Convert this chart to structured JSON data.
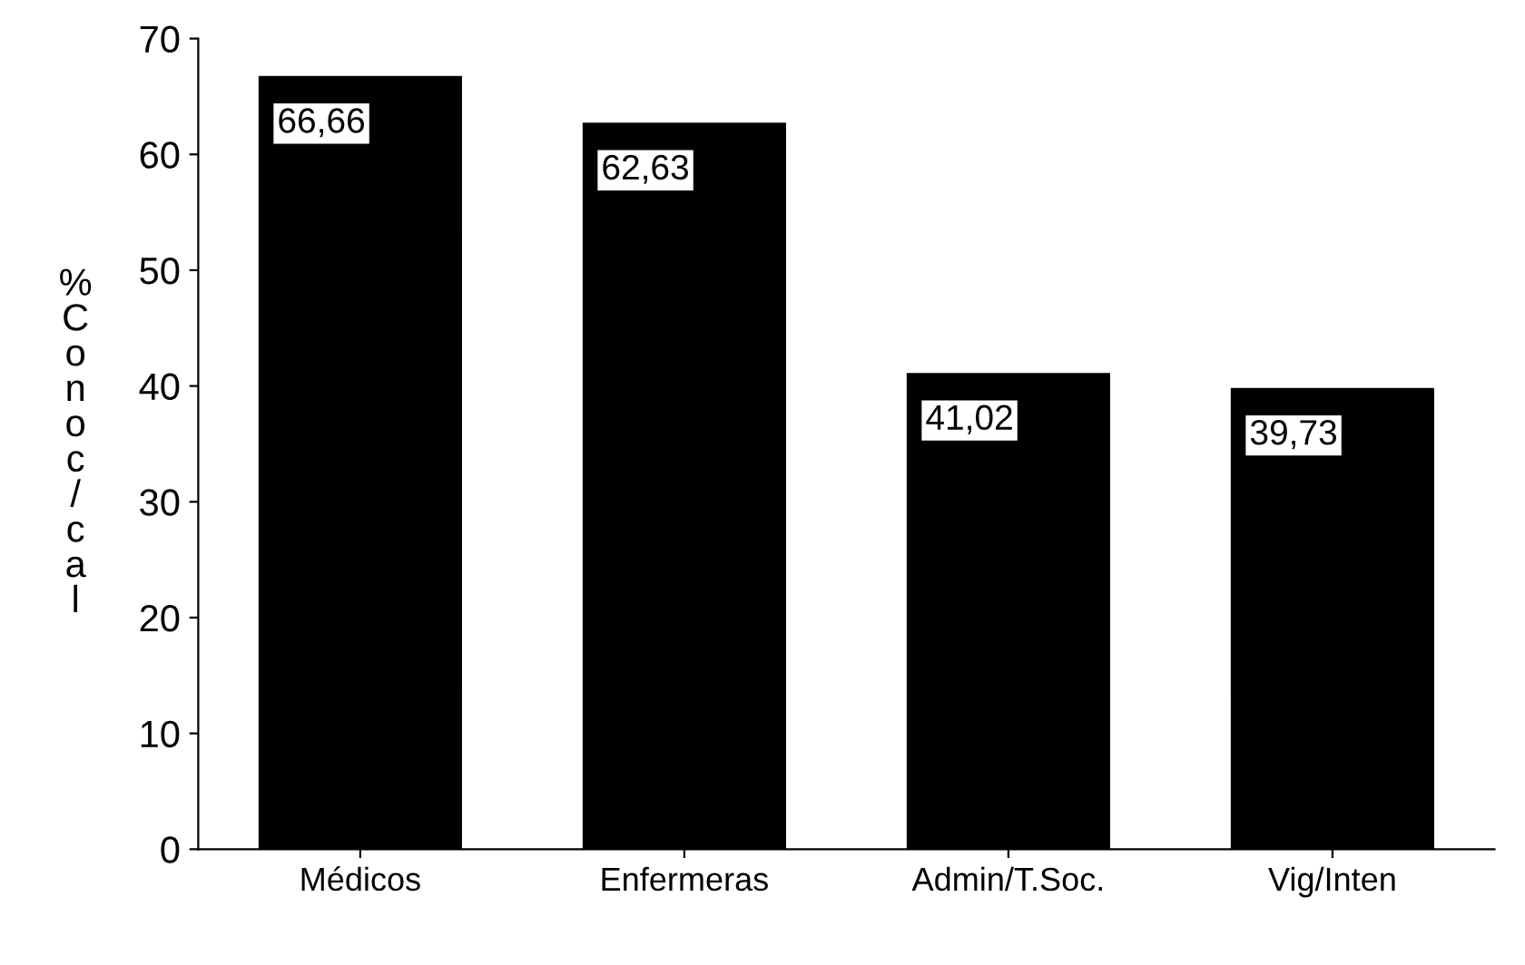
{
  "chart_data": {
    "type": "bar",
    "ylabel": "% Conoc/cal",
    "categories": [
      "Médicos",
      "Enfermeras",
      "Admin/T.Soc.",
      "Vig/Inten"
    ],
    "values": [
      66.66,
      62.63,
      41.02,
      39.73
    ],
    "value_labels": [
      "66,66",
      "62,63",
      "41,02",
      "39,73"
    ],
    "color": "#000000",
    "ylim": [
      0,
      70
    ],
    "yticks": [
      0,
      10,
      20,
      30,
      40,
      50,
      60,
      70
    ],
    "grid": false,
    "legend": false
  }
}
